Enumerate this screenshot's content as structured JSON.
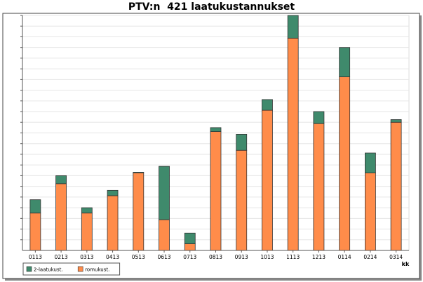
{
  "colors": {
    "background": "#ffffff",
    "plot_background": "#ffffff",
    "gridline": "#e6e6e6",
    "axis": "#555555",
    "frame": "#444444",
    "bar_outline": "#333333"
  },
  "chart_data": {
    "type": "bar",
    "stacked": true,
    "title": "PTV:n  421 laatukustannukset",
    "xlabel": "kk",
    "ylabel": "",
    "grid": true,
    "legend_position": "bottom-left",
    "y_tick_labels_shown": false,
    "ylim": [
      0,
      88
    ],
    "categories": [
      "0113",
      "0213",
      "0313",
      "0413",
      "0513",
      "0613",
      "0713",
      "0813",
      "0913",
      "1013",
      "1113",
      "1213",
      "0114",
      "0214",
      "0314"
    ],
    "series": [
      {
        "name": "romukust.",
        "color": "#ff8c4a",
        "values": [
          14,
          25,
          14,
          20.5,
          29,
          11.5,
          2.5,
          44.5,
          37.5,
          52.5,
          79.5,
          47.5,
          65,
          29,
          48
        ]
      },
      {
        "name": "2-laatukust.",
        "color": "#3f8a6c",
        "values": [
          5,
          3,
          2,
          2,
          0.3,
          20,
          4,
          1.5,
          6,
          4,
          8.5,
          4.5,
          11,
          7.5,
          1
        ]
      }
    ]
  }
}
